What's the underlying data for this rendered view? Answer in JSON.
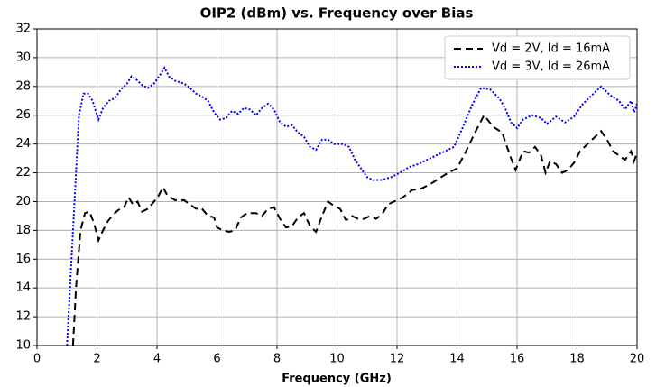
{
  "chart_data": {
    "type": "line",
    "title": "OIP2 (dBm) vs. Frequency over Bias",
    "x_label": "Frequency (GHz)",
    "xlim": [
      0,
      20
    ],
    "xticks": [
      0,
      2,
      4,
      6,
      8,
      10,
      12,
      14,
      16,
      18,
      20
    ],
    "ylim": [
      10,
      32
    ],
    "yticks": [
      10,
      12,
      14,
      16,
      18,
      20,
      22,
      24,
      26,
      28,
      30,
      32
    ],
    "grid": true,
    "legend": "upper right",
    "series": [
      {
        "name": "Vd = 2V, Id = 16mA",
        "color": "#000000",
        "style": "dashed",
        "x": [
          1.2,
          1.3,
          1.45,
          1.6,
          1.75,
          1.9,
          2.05,
          2.2,
          2.35,
          2.5,
          2.7,
          2.9,
          3.05,
          3.2,
          3.35,
          3.5,
          3.7,
          3.9,
          4.05,
          4.2,
          4.35,
          4.6,
          4.9,
          5.1,
          5.3,
          5.5,
          5.7,
          5.9,
          6.0,
          6.2,
          6.4,
          6.6,
          6.8,
          7.0,
          7.3,
          7.5,
          7.7,
          7.9,
          8.1,
          8.3,
          8.5,
          8.7,
          8.9,
          9.1,
          9.3,
          9.5,
          9.7,
          9.9,
          10.1,
          10.3,
          10.5,
          10.7,
          10.9,
          11.1,
          11.3,
          11.5,
          11.7,
          12.0,
          12.2,
          12.5,
          12.8,
          13.1,
          13.4,
          13.7,
          14.0,
          14.3,
          14.6,
          14.9,
          15.2,
          15.5,
          15.8,
          15.95,
          16.2,
          16.4,
          16.6,
          16.8,
          16.95,
          17.1,
          17.3,
          17.5,
          17.7,
          17.9,
          18.1,
          18.3,
          18.5,
          18.8,
          19.0,
          19.2,
          19.4,
          19.6,
          19.8,
          19.9,
          20.0
        ],
        "values": [
          10,
          14,
          18,
          19.2,
          19.3,
          18.5,
          17.3,
          18,
          18.6,
          19,
          19.4,
          19.6,
          20.3,
          19.8,
          20,
          19.3,
          19.5,
          20,
          20.4,
          21,
          20.4,
          20.1,
          20.1,
          19.8,
          19.5,
          19.5,
          19,
          18.9,
          18.2,
          18,
          17.9,
          18,
          18.9,
          19.2,
          19.2,
          19,
          19.5,
          19.6,
          18.8,
          18.2,
          18.3,
          18.9,
          19.2,
          18.3,
          17.9,
          19,
          20,
          19.7,
          19.5,
          18.7,
          19,
          18.8,
          18.8,
          19,
          18.8,
          19.1,
          19.8,
          20.1,
          20.3,
          20.8,
          20.9,
          21.2,
          21.6,
          22,
          22.3,
          23.5,
          24.8,
          26,
          25.2,
          24.8,
          23,
          22.2,
          23.5,
          23.4,
          23.8,
          23.2,
          22,
          22.8,
          22.6,
          22,
          22.2,
          22.7,
          23.5,
          23.9,
          24.3,
          24.9,
          24.3,
          23.5,
          23.2,
          22.9,
          23.5,
          22.8,
          23.4
        ]
      },
      {
        "name": "Vd = 3V, Id = 26mA",
        "color": "#0000ff",
        "style": "dotted",
        "x": [
          1.0,
          1.1,
          1.25,
          1.4,
          1.55,
          1.7,
          1.85,
          2.05,
          2.2,
          2.4,
          2.6,
          2.8,
          3.0,
          3.15,
          3.3,
          3.5,
          3.7,
          3.9,
          4.1,
          4.25,
          4.4,
          4.6,
          4.9,
          5.1,
          5.3,
          5.5,
          5.7,
          5.9,
          6.1,
          6.3,
          6.5,
          6.7,
          6.9,
          7.1,
          7.3,
          7.5,
          7.7,
          7.9,
          8.1,
          8.3,
          8.5,
          8.7,
          8.9,
          9.1,
          9.3,
          9.5,
          9.7,
          9.9,
          10.2,
          10.4,
          10.6,
          10.8,
          11.0,
          11.2,
          11.5,
          11.8,
          12.1,
          12.4,
          12.7,
          13.0,
          13.3,
          13.6,
          13.9,
          14.2,
          14.5,
          14.8,
          15.1,
          15.4,
          15.6,
          15.8,
          16.0,
          16.2,
          16.5,
          16.8,
          17.0,
          17.3,
          17.6,
          17.9,
          18.2,
          18.5,
          18.8,
          19.1,
          19.4,
          19.6,
          19.8,
          19.9,
          20.0
        ],
        "values": [
          10,
          14,
          20,
          26,
          27.5,
          27.5,
          27,
          25.7,
          26.5,
          27,
          27.2,
          27.8,
          28.2,
          28.7,
          28.5,
          28.1,
          27.9,
          28.2,
          28.8,
          29.3,
          28.7,
          28.4,
          28.2,
          27.9,
          27.5,
          27.3,
          27,
          26.2,
          25.7,
          25.8,
          26.3,
          26.1,
          26.5,
          26.4,
          26,
          26.5,
          26.8,
          26.4,
          25.5,
          25.2,
          25.3,
          24.8,
          24.5,
          23.8,
          23.6,
          24.3,
          24.3,
          24,
          24,
          23.8,
          22.9,
          22.3,
          21.7,
          21.5,
          21.5,
          21.7,
          22,
          22.4,
          22.6,
          22.9,
          23.2,
          23.5,
          23.8,
          25.2,
          26.7,
          27.9,
          27.8,
          27.2,
          26.5,
          25.5,
          25.1,
          25.7,
          26,
          25.8,
          25.4,
          25.9,
          25.5,
          25.9,
          26.8,
          27.4,
          28,
          27.4,
          27,
          26.4,
          27,
          26.2,
          26.8
        ]
      }
    ]
  }
}
